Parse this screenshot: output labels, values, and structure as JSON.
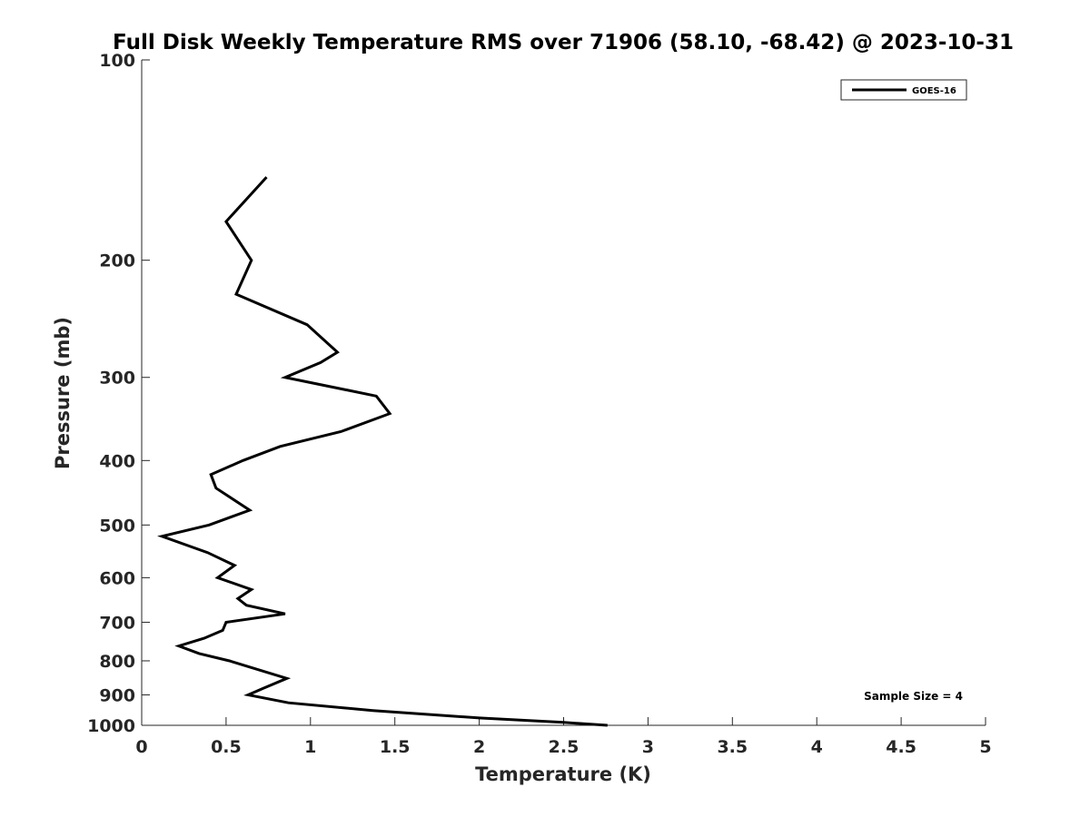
{
  "chart_data": {
    "type": "line",
    "title": "Full Disk Weekly Temperature RMS over 71906 (58.10, -68.42) @ 2023-10-31",
    "xlabel": "Temperature (K)",
    "ylabel": "Pressure (mb)",
    "xlim": [
      0,
      5
    ],
    "ylim": [
      100,
      1000
    ],
    "y_scale": "log",
    "y_reversed": true,
    "grid": false,
    "legend_position": "top-right",
    "x_ticks": [
      "0",
      "0.5",
      "1",
      "1.5",
      "2",
      "2.5",
      "3",
      "3.5",
      "4",
      "4.5",
      "5"
    ],
    "x_tick_values": [
      0,
      0.5,
      1,
      1.5,
      2,
      2.5,
      3,
      3.5,
      4,
      4.5,
      5
    ],
    "y_ticks": [
      "100",
      "200",
      "300",
      "400",
      "500",
      "600",
      "700",
      "800",
      "900",
      "1000"
    ],
    "y_tick_values": [
      100,
      200,
      300,
      400,
      500,
      600,
      700,
      800,
      900,
      1000
    ],
    "series": [
      {
        "name": "GOES-16",
        "color": "#000000",
        "points": [
          {
            "x": 0.74,
            "y": 150
          },
          {
            "x": 0.5,
            "y": 175
          },
          {
            "x": 0.65,
            "y": 200
          },
          {
            "x": 0.56,
            "y": 225
          },
          {
            "x": 0.98,
            "y": 250
          },
          {
            "x": 1.16,
            "y": 275
          },
          {
            "x": 1.06,
            "y": 285
          },
          {
            "x": 0.85,
            "y": 300
          },
          {
            "x": 1.39,
            "y": 320
          },
          {
            "x": 1.47,
            "y": 340
          },
          {
            "x": 1.18,
            "y": 362
          },
          {
            "x": 0.82,
            "y": 381
          },
          {
            "x": 0.6,
            "y": 400
          },
          {
            "x": 0.41,
            "y": 420
          },
          {
            "x": 0.44,
            "y": 440
          },
          {
            "x": 0.64,
            "y": 475
          },
          {
            "x": 0.4,
            "y": 500
          },
          {
            "x": 0.12,
            "y": 520
          },
          {
            "x": 0.39,
            "y": 550
          },
          {
            "x": 0.55,
            "y": 575
          },
          {
            "x": 0.45,
            "y": 600
          },
          {
            "x": 0.65,
            "y": 625
          },
          {
            "x": 0.57,
            "y": 645
          },
          {
            "x": 0.62,
            "y": 660
          },
          {
            "x": 0.85,
            "y": 680
          },
          {
            "x": 0.5,
            "y": 700
          },
          {
            "x": 0.48,
            "y": 720
          },
          {
            "x": 0.37,
            "y": 740
          },
          {
            "x": 0.22,
            "y": 760
          },
          {
            "x": 0.34,
            "y": 780
          },
          {
            "x": 0.52,
            "y": 800
          },
          {
            "x": 0.86,
            "y": 850
          },
          {
            "x": 0.72,
            "y": 880
          },
          {
            "x": 0.63,
            "y": 900
          },
          {
            "x": 0.87,
            "y": 925
          },
          {
            "x": 1.37,
            "y": 950
          },
          {
            "x": 2.0,
            "y": 975
          },
          {
            "x": 2.5,
            "y": 990
          },
          {
            "x": 2.76,
            "y": 1000
          }
        ]
      }
    ],
    "annotations": [
      {
        "text": "Sample Size = 4",
        "position": "bottom-right"
      }
    ]
  }
}
